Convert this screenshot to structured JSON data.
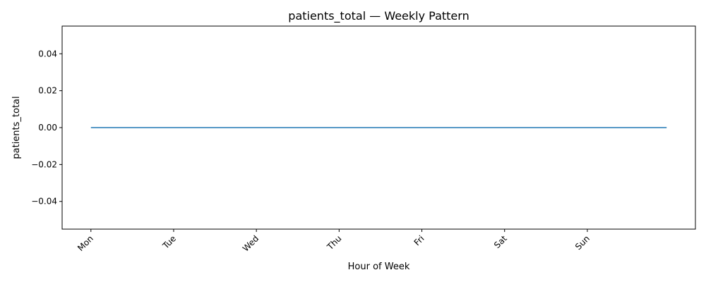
{
  "chart_data": {
    "type": "line",
    "title": "patients_total — Weekly Pattern",
    "xlabel": "Hour of Week",
    "ylabel": "patients_total",
    "xlim": [
      -8.35,
      175.35
    ],
    "ylim": [
      -0.055,
      0.055
    ],
    "x_ticks": [
      {
        "value": 0,
        "label": "Mon"
      },
      {
        "value": 24,
        "label": "Tue"
      },
      {
        "value": 48,
        "label": "Wed"
      },
      {
        "value": 72,
        "label": "Thu"
      },
      {
        "value": 96,
        "label": "Fri"
      },
      {
        "value": 120,
        "label": "Sat"
      },
      {
        "value": 144,
        "label": "Sun"
      }
    ],
    "y_ticks": [
      {
        "value": 0.04,
        "label": "0.04"
      },
      {
        "value": 0.02,
        "label": "0.02"
      },
      {
        "value": 0.0,
        "label": "0.00"
      },
      {
        "value": -0.02,
        "label": "−0.02"
      },
      {
        "value": -0.04,
        "label": "−0.04"
      }
    ],
    "grid": false,
    "series": [
      {
        "x_range": [
          0,
          167
        ],
        "y_constant": 0,
        "color": "#1f77b4"
      }
    ]
  }
}
